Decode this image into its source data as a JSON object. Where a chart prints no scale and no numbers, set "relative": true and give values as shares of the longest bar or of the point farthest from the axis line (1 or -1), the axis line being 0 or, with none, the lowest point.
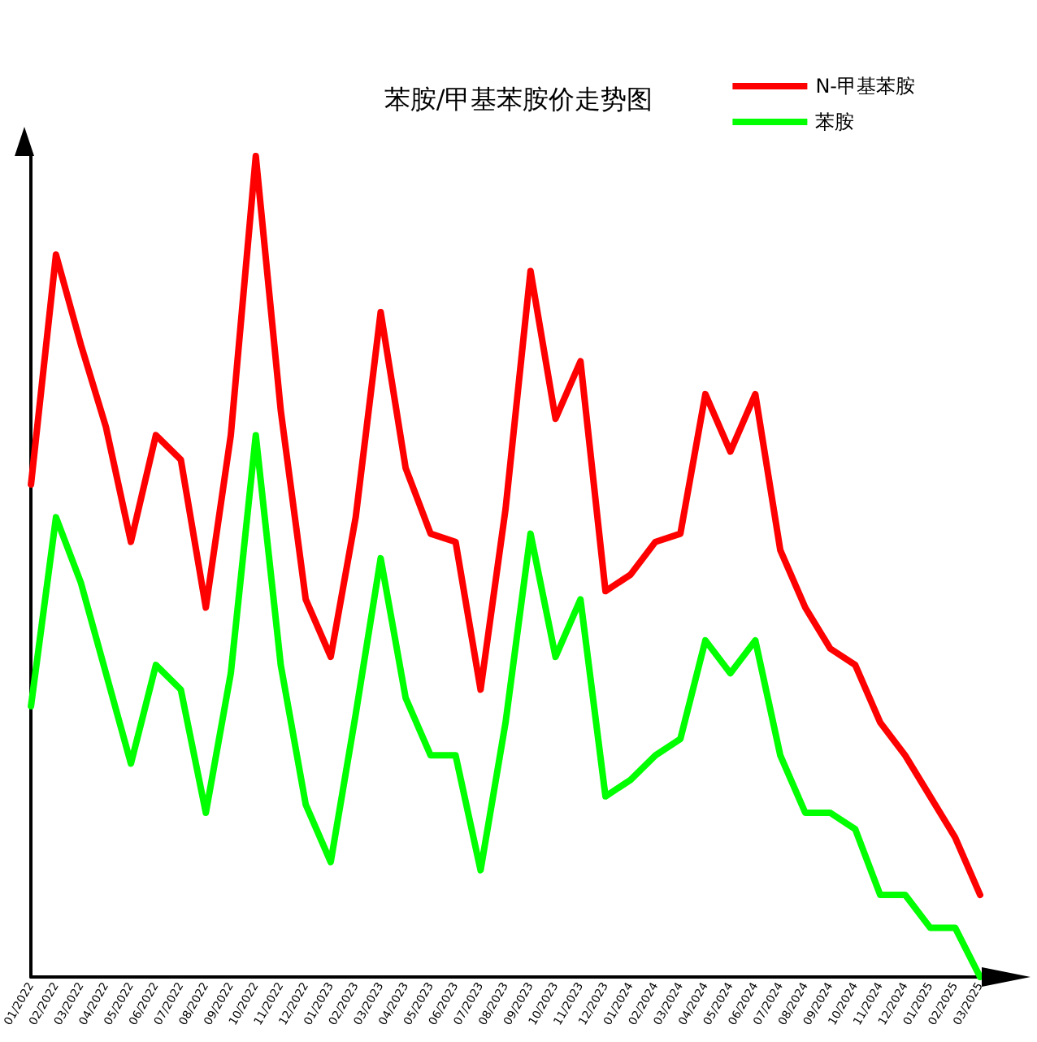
{
  "chart_data": {
    "type": "line",
    "title": "苯胺/甲基苯胺价走势图",
    "relative": true,
    "legend": "top right",
    "grid": false,
    "marker": "none",
    "line_style": "solid",
    "categories": [
      "01/2022",
      "02/2022",
      "03/2022",
      "04/2022",
      "05/2022",
      "06/2022",
      "07/2022",
      "08/2022",
      "09/2022",
      "10/2022",
      "11/2022",
      "12/2022",
      "01/2023",
      "02/2023",
      "03/2023",
      "04/2023",
      "05/2023",
      "06/2023",
      "07/2023",
      "08/2023",
      "09/2023",
      "10/2023",
      "11/2023",
      "12/2023",
      "01/2024",
      "02/2024",
      "03/2024",
      "04/2024",
      "05/2024",
      "06/2024",
      "07/2024",
      "08/2024",
      "09/2024",
      "10/2024",
      "11/2024",
      "12/2024",
      "01/2025",
      "02/2025",
      "03/2025"
    ],
    "series": [
      {
        "name": "N-甲基苯胺",
        "color": "#ff0000",
        "values": [
          0.6,
          0.88,
          0.77,
          0.67,
          0.53,
          0.66,
          0.63,
          0.45,
          0.66,
          1,
          0.69,
          0.46,
          0.39,
          0.56,
          0.81,
          0.62,
          0.54,
          0.53,
          0.35,
          0.57,
          0.86,
          0.68,
          0.75,
          0.47,
          0.49,
          0.53,
          0.54,
          0.71,
          0.64,
          0.71,
          0.52,
          0.45,
          0.4,
          0.38,
          0.31,
          0.27,
          0.22,
          0.17,
          0.1
        ]
      },
      {
        "name": "苯胺",
        "color": "#00ff00",
        "values": [
          0.33,
          0.56,
          0.48,
          0.37,
          0.26,
          0.38,
          0.35,
          0.2,
          0.37,
          0.66,
          0.38,
          0.21,
          0.14,
          0.32,
          0.51,
          0.34,
          0.27,
          0.27,
          0.13,
          0.31,
          0.54,
          0.39,
          0.46,
          0.22,
          0.24,
          0.27,
          0.29,
          0.41,
          0.37,
          0.41,
          0.27,
          0.2,
          0.2,
          0.18,
          0.1,
          0.1,
          0.06,
          0.06,
          0.0
        ]
      }
    ]
  }
}
